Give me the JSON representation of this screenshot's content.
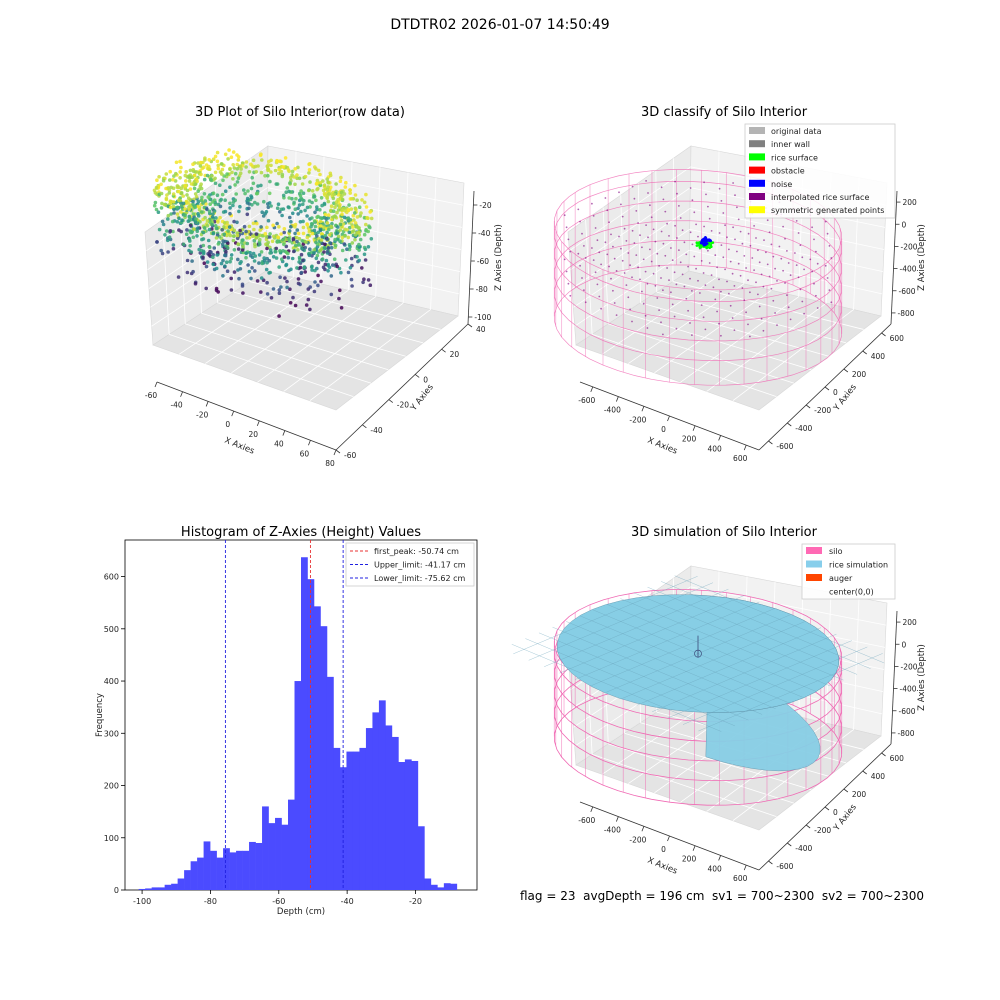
{
  "figure": {
    "suptitle": "DTDTR02 2026-01-07 14:50:49",
    "footer": "flag = 23  avgDepth = 196 cm  sv1 = 700~2300  sv2 = 700~2300"
  },
  "colors": {
    "hist_bar": "#4B4BFF",
    "peak_line": "#E83030",
    "limit_line": "#2020E0",
    "silo_wire": "#F06AB4",
    "rice_surface": "#87CEE5",
    "pane_left": "#EBEBEB",
    "pane_right": "#F2F2F2",
    "pane_floor": "#E4E4E4",
    "grid": "#FFFFFF"
  },
  "chart_data": [
    {
      "type": "scatter",
      "title": "3D Plot of Silo Interior(row data)",
      "xlabel": "X Axies",
      "ylabel": "Y Axies",
      "zlabel": "Z Axies (Depth)",
      "xlim": [
        -60,
        80
      ],
      "ylim": [
        -60,
        40
      ],
      "zlim": [
        -105,
        -10
      ],
      "xticks": [
        -60,
        -40,
        -20,
        0,
        20,
        40,
        60,
        80
      ],
      "yticks": [
        -60,
        -40,
        -20,
        0,
        20,
        40
      ],
      "zticks": [
        -100,
        -80,
        -60,
        -40,
        -20
      ],
      "colormap": "viridis",
      "description_points": "approx. 9000 lidar points forming a ring-shaped rice surface between depth -100 and -20 cm"
    },
    {
      "type": "scatter",
      "title": "3D classify of Silo Interior",
      "xlabel": "X Axies",
      "ylabel": "Y Axies",
      "zlabel": "Z Axies (Depth)",
      "xlim": [
        -700,
        700
      ],
      "ylim": [
        -700,
        700
      ],
      "zlim": [
        -900,
        300
      ],
      "xticks": [
        -600,
        -400,
        -200,
        0,
        200,
        400,
        600
      ],
      "yticks": [
        -600,
        -400,
        -200,
        0,
        200,
        400,
        600
      ],
      "zticks": [
        -800,
        -600,
        -400,
        -200,
        0,
        200
      ],
      "legend": {
        "position": "upper right",
        "entries": [
          {
            "label": "original data",
            "color": "#B4B4B4"
          },
          {
            "label": "inner wall",
            "color": "#808080"
          },
          {
            "label": "rice surface",
            "color": "#00FF00"
          },
          {
            "label": "obstacle",
            "color": "#FF0000"
          },
          {
            "label": "noise",
            "color": "#0000FF"
          },
          {
            "label": "interpolated rice surface",
            "color": "#800080"
          },
          {
            "label": "symmetric generated points",
            "color": "#FFFF00"
          }
        ]
      }
    },
    {
      "type": "bar",
      "title": "Histogram of Z-Axies (Height) Values",
      "xlabel": "Depth (cm)",
      "ylabel": "Frequency",
      "xlim": [
        -105,
        -2
      ],
      "ylim": [
        0,
        670
      ],
      "xticks": [
        -100,
        -80,
        -60,
        -40,
        -20
      ],
      "yticks": [
        0,
        100,
        200,
        300,
        400,
        500,
        600
      ],
      "bin_start": -101,
      "bin_width": 1.9,
      "values": [
        2,
        3,
        5,
        5,
        10,
        12,
        22,
        38,
        55,
        62,
        93,
        75,
        62,
        80,
        72,
        75,
        75,
        92,
        90,
        160,
        128,
        138,
        125,
        173,
        400,
        637,
        595,
        543,
        505,
        408,
        272,
        235,
        265,
        265,
        272,
        310,
        340,
        363,
        315,
        293,
        245,
        250,
        247,
        122,
        22,
        10,
        5,
        13,
        12
      ],
      "vlines": [
        {
          "label": "first_peak: -50.74 cm",
          "x": -50.74,
          "color": "#E83030"
        },
        {
          "label": "Upper_limit: -41.17 cm",
          "x": -41.17,
          "color": "#2020E0"
        },
        {
          "label": "Lower_limit: -75.62 cm",
          "x": -75.62,
          "color": "#2020E0"
        }
      ]
    },
    {
      "type": "surface",
      "title": "3D simulation of Silo Interior",
      "xlabel": "X Axies",
      "ylabel": "Y Axies",
      "zlabel": "Z Axies (Depth)",
      "xlim": [
        -700,
        700
      ],
      "ylim": [
        -700,
        700
      ],
      "zlim": [
        -900,
        300
      ],
      "xticks": [
        -600,
        -400,
        -200,
        0,
        200,
        400,
        600
      ],
      "yticks": [
        -600,
        -400,
        -200,
        0,
        200,
        400,
        600
      ],
      "zticks": [
        -800,
        -600,
        -400,
        -200,
        0,
        200
      ],
      "legend": {
        "position": "upper right",
        "entries": [
          {
            "label": "silo",
            "color": "#FF69B4"
          },
          {
            "label": "rice simulation",
            "color": "#87CEEB"
          },
          {
            "label": "auger",
            "color": "#FF4500"
          },
          {
            "label": "center(0,0)",
            "color": ""
          }
        ]
      }
    }
  ]
}
